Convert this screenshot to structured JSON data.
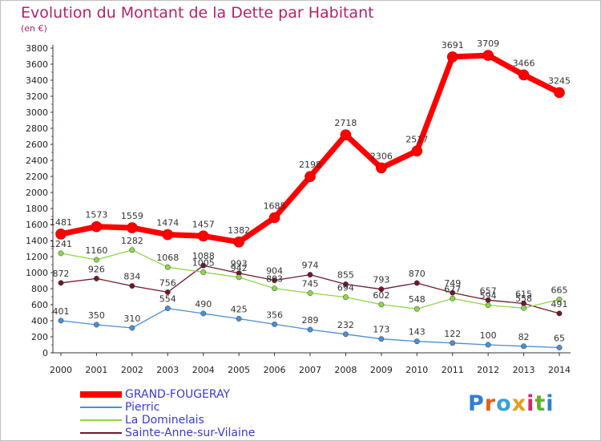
{
  "title": "Evolution du Montant de la Dette par Habitant",
  "subtitle": "(en €)",
  "logo_text": "Proxiti",
  "chart_data": {
    "type": "line",
    "title": "Evolution du Montant de la Dette par Habitant",
    "subtitle": "(en €)",
    "x": [
      "2000",
      "2001",
      "2002",
      "2003",
      "2004",
      "2005",
      "2006",
      "2007",
      "2008",
      "2009",
      "2010",
      "2011",
      "2012",
      "2013",
      "2014"
    ],
    "ylim": [
      0,
      3800
    ],
    "yticks": [
      "0",
      "200",
      "400",
      "600",
      "800",
      "1000",
      "1200",
      "1400",
      "1600",
      "1800",
      "2000",
      "2200",
      "2400",
      "2600",
      "2800",
      "3000",
      "3200",
      "3400",
      "3600",
      "3800"
    ],
    "grid": false,
    "legend_position": "bottom-left",
    "series": [
      {
        "name": "GRAND-FOUGERAY",
        "color": "#ff0000",
        "values": [
          1481,
          1573,
          1559,
          1474,
          1457,
          1382,
          1685,
          2198,
          2718,
          2306,
          2517,
          3691,
          3709,
          3466,
          3245
        ]
      },
      {
        "name": "Pierric",
        "color": "#4a8fd6",
        "values": [
          401,
          350,
          310,
          554,
          490,
          425,
          356,
          289,
          232,
          173,
          143,
          122,
          100,
          82,
          65
        ]
      },
      {
        "name": "La Dominelais",
        "color": "#8ed64a",
        "values": [
          1241,
          1160,
          1282,
          1068,
          1005,
          942,
          803,
          745,
          694,
          602,
          548,
          677,
          594,
          558,
          665
        ]
      },
      {
        "name": "Sainte-Anne-sur-Vilaine",
        "color": "#6e1a2a",
        "values": [
          872,
          926,
          834,
          756,
          1088,
          993,
          904,
          974,
          855,
          793,
          870,
          749,
          657,
          615,
          491
        ]
      }
    ]
  }
}
